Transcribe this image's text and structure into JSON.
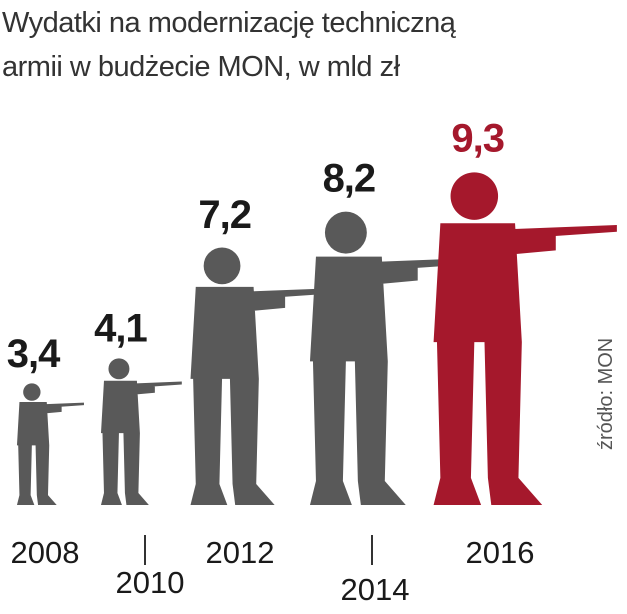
{
  "chart_data": {
    "type": "pictogram",
    "title_lines": [
      "Wydatki na modernizację techniczną",
      "armii w budżecie MON, w mld zł"
    ],
    "categories": [
      "2008",
      "2010",
      "2012",
      "2014",
      "2016"
    ],
    "values": [
      3.4,
      4.1,
      7.2,
      8.2,
      9.3
    ],
    "value_labels": [
      "3,4",
      "4,1",
      "7,2",
      "8,2",
      "9,3"
    ],
    "colors": [
      "#595959",
      "#595959",
      "#595959",
      "#595959",
      "#a5182c"
    ],
    "source": "źródło: MON"
  }
}
